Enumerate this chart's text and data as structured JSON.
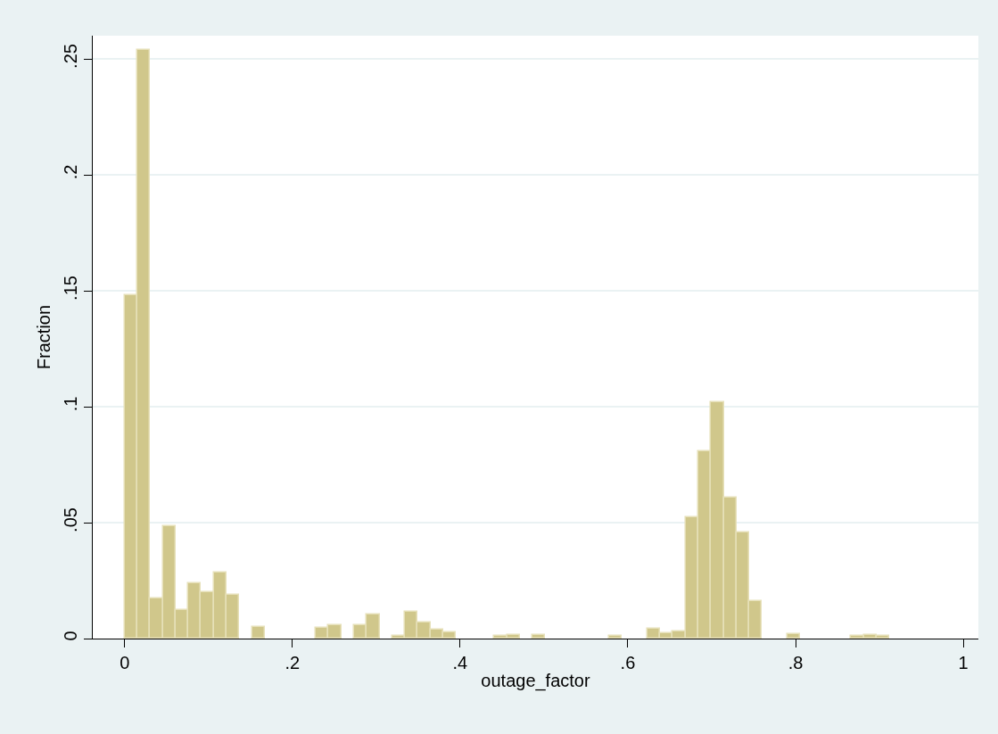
{
  "chart_data": {
    "type": "histogram",
    "xlabel": "outage_factor",
    "ylabel": "Fraction",
    "color": "#d0c78b",
    "bins": [
      0,
      0.0152,
      0.0304,
      0.0456,
      0.0608,
      0.076,
      0.0912,
      0.1064,
      0.1216,
      0.1368,
      0.152,
      0.1672,
      0.1824,
      0.1976,
      0.2128,
      0.228,
      0.2432,
      0.2584,
      0.2736,
      0.2888,
      0.304,
      0.3192,
      0.3344,
      0.3496,
      0.3648,
      0.38,
      0.3952,
      0.4104,
      0.4256,
      0.4408,
      0.456,
      0.4712,
      0.4864,
      0.5016,
      0.5168,
      0.532,
      0.5472,
      0.5624,
      0.5776,
      0.5928,
      0.608,
      0.6232,
      0.6384,
      0.6536,
      0.6688,
      0.684,
      0.6992,
      0.7144,
      0.7296,
      0.7448,
      0.76,
      0.7752,
      0.7904,
      0.8056,
      0.8208,
      0.836,
      0.8512,
      0.8664,
      0.8816,
      0.8968,
      0.912
    ],
    "values": [
      0.148,
      0.254,
      0.0173,
      0.0485,
      0.0123,
      0.024,
      0.02,
      0.0285,
      0.019,
      0,
      0.005,
      0,
      0,
      0,
      0,
      0.0045,
      0.0058,
      0,
      0.0058,
      0.0103,
      0,
      0.001,
      0.0115,
      0.0068,
      0.0038,
      0.0028,
      0,
      0,
      0,
      0.001,
      0.0017,
      0,
      0.0017,
      0,
      0,
      0,
      0,
      0,
      0.001,
      0,
      0,
      0.0044,
      0.0024,
      0.0032,
      0.0525,
      0.0807,
      0.1018,
      0.0609,
      0.0458,
      0.016,
      0,
      0,
      0.002,
      0,
      0,
      0,
      0,
      0.001,
      0.0015,
      0.001
    ],
    "xlim": [
      -0.038,
      1.018
    ],
    "ylim": [
      0,
      0.26
    ],
    "xticks": [
      {
        "value": 0,
        "label": "0"
      },
      {
        "value": 0.2,
        "label": ".2"
      },
      {
        "value": 0.4,
        "label": ".4"
      },
      {
        "value": 0.6,
        "label": ".6"
      },
      {
        "value": 0.8,
        "label": ".8"
      },
      {
        "value": 1,
        "label": "1"
      }
    ],
    "yticks": [
      {
        "value": 0,
        "label": "0"
      },
      {
        "value": 0.05,
        "label": ".05"
      },
      {
        "value": 0.1,
        "label": ".1"
      },
      {
        "value": 0.15,
        "label": ".15"
      },
      {
        "value": 0.2,
        "label": ".2"
      },
      {
        "value": 0.25,
        "label": ".25"
      }
    ],
    "grid": "y",
    "legend": false
  }
}
